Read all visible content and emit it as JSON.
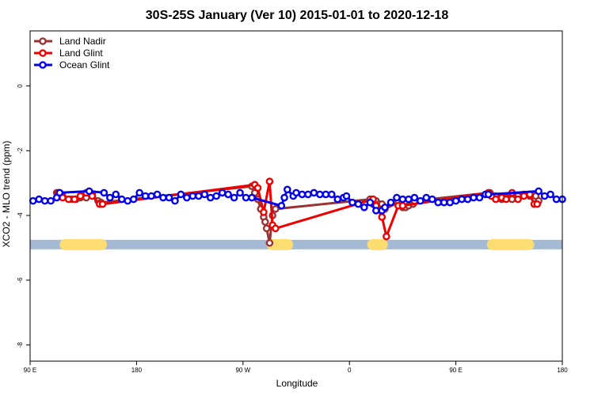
{
  "chart_data": {
    "type": "line",
    "title": "30S-25S January (Ver 10)   2015-01-01 to 2020-12-18",
    "xlabel": "Longitude",
    "ylabel": "XCO2 - MLO trend (ppm)",
    "xlim": [
      90,
      450
    ],
    "ylim": [
      -8.5,
      1.7
    ],
    "x_ticks": [
      {
        "value": 90,
        "label": "90 E"
      },
      {
        "value": 162,
        "label": "180"
      },
      {
        "value": 234,
        "label": "90 W"
      },
      {
        "value": 306,
        "label": "0"
      },
      {
        "value": 378,
        "label": "90 E"
      },
      {
        "value": 450,
        "label": "180"
      }
    ],
    "y_ticks": [
      {
        "value": 0,
        "label": "0"
      },
      {
        "value": -2,
        "label": "-2"
      },
      {
        "value": -4,
        "label": "-4"
      },
      {
        "value": -6,
        "label": "-6"
      },
      {
        "value": -8,
        "label": "-8"
      }
    ],
    "legend": {
      "position": "top-left",
      "entries": [
        "Land Nadir",
        "Land Glint",
        "Ocean Glint"
      ]
    },
    "band": {
      "y": -4.9,
      "ocean_color": "#a4b9d4",
      "land_color": "#fddd71",
      "land_ranges": [
        [
          110,
          142
        ],
        [
          250,
          268
        ],
        [
          318,
          332
        ],
        [
          399,
          431
        ]
      ]
    },
    "series": [
      {
        "name": "Land Nadir",
        "color": "#993333",
        "x": [
          108,
          110,
          112,
          118,
          121,
          124,
          128,
          132,
          136,
          138,
          240,
          242,
          244,
          246,
          248,
          249,
          250,
          252,
          254,
          256,
          320,
          322,
          324,
          326,
          328,
          330,
          339,
          341,
          342,
          344,
          346,
          349,
          350,
          401,
          403,
          405,
          409,
          412,
          416,
          420,
          424,
          428,
          431,
          432,
          434
        ],
        "y": [
          -3.3,
          -3.3,
          -3.4,
          -3.5,
          -3.5,
          -3.45,
          -3.45,
          -3.35,
          -3.55,
          -3.6,
          -3.1,
          -3.3,
          -3.5,
          -3.8,
          -4.05,
          -4.2,
          -4.4,
          -4.85,
          -4.0,
          -3.8,
          -3.5,
          -3.65,
          -3.55,
          -3.65,
          -3.65,
          -3.8,
          -3.6,
          -3.65,
          -3.75,
          -3.75,
          -3.7,
          -3.65,
          -3.55,
          -3.3,
          -3.4,
          -3.4,
          -3.5,
          -3.45,
          -3.5,
          -3.4,
          -3.35,
          -3.4,
          -3.35,
          -3.4,
          -3.55
        ]
      },
      {
        "name": "Land Glint",
        "color": "#ee0000",
        "x": [
          109,
          112,
          116,
          120,
          124,
          128,
          132,
          137,
          139,
          242,
          244,
          248,
          252,
          254,
          256,
          322,
          324,
          328,
          331,
          339,
          342,
          400,
          402,
          405,
          409,
          412,
          416,
          420,
          424,
          428,
          431,
          433
        ],
        "y": [
          -3.3,
          -3.45,
          -3.5,
          -3.5,
          -3.4,
          -3.3,
          -3.4,
          -3.65,
          -3.65,
          -3.05,
          -3.15,
          -3.9,
          -2.95,
          -4.3,
          -4.4,
          -3.5,
          -3.7,
          -4.05,
          -4.65,
          -3.7,
          -3.7,
          -3.3,
          -3.4,
          -3.5,
          -3.45,
          -3.5,
          -3.3,
          -3.5,
          -3.4,
          -3.35,
          -3.65,
          -3.65
        ]
      },
      {
        "name": "Ocean Glint",
        "color": "#0000ee",
        "x": [
          92,
          96,
          100,
          104,
          108,
          110,
          130,
          140,
          144,
          148,
          152,
          156,
          160,
          164,
          168,
          172,
          176,
          180,
          184,
          188,
          192,
          196,
          200,
          204,
          208,
          212,
          216,
          220,
          224,
          228,
          232,
          236,
          240,
          260,
          262,
          264,
          268,
          270,
          274,
          278,
          282,
          286,
          290,
          294,
          298,
          302,
          304,
          308,
          312,
          316,
          320,
          324,
          328,
          330,
          334,
          338,
          342,
          346,
          350,
          354,
          358,
          362,
          366,
          370,
          374,
          378,
          382,
          386,
          390,
          394,
          398,
          400,
          434,
          438,
          442,
          446,
          450
        ],
        "y": [
          -3.55,
          -3.5,
          -3.55,
          -3.55,
          -3.45,
          -3.3,
          -3.25,
          -3.3,
          -3.45,
          -3.35,
          -3.5,
          -3.55,
          -3.5,
          -3.3,
          -3.4,
          -3.4,
          -3.35,
          -3.45,
          -3.45,
          -3.55,
          -3.35,
          -3.45,
          -3.4,
          -3.4,
          -3.35,
          -3.45,
          -3.4,
          -3.3,
          -3.35,
          -3.45,
          -3.3,
          -3.45,
          -3.45,
          -3.7,
          -3.45,
          -3.2,
          -3.4,
          -3.3,
          -3.35,
          -3.35,
          -3.3,
          -3.35,
          -3.35,
          -3.35,
          -3.5,
          -3.45,
          -3.4,
          -3.6,
          -3.65,
          -3.75,
          -3.6,
          -3.85,
          -3.85,
          -3.75,
          -3.6,
          -3.45,
          -3.5,
          -3.5,
          -3.45,
          -3.55,
          -3.45,
          -3.5,
          -3.6,
          -3.6,
          -3.6,
          -3.55,
          -3.5,
          -3.5,
          -3.45,
          -3.45,
          -3.35,
          -3.35,
          -3.25,
          -3.4,
          -3.35,
          -3.5,
          -3.5
        ]
      }
    ]
  }
}
